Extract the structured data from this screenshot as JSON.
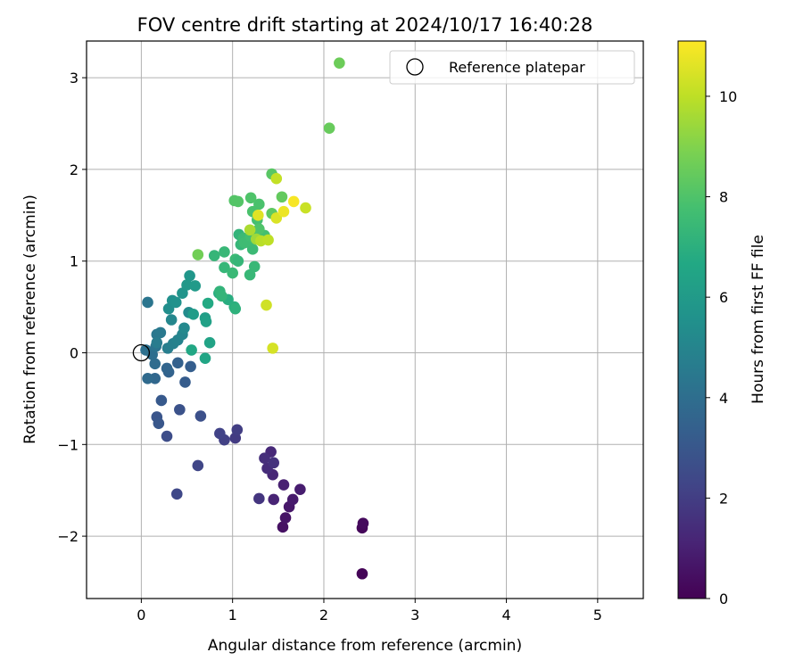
{
  "chart_data": {
    "type": "scatter",
    "title": "FOV centre drift starting at 2024/10/17 16:40:28",
    "xlabel": "Angular distance from reference (arcmin)",
    "ylabel": "Rotation from reference (arcmin)",
    "xlim": [
      -0.6,
      5.5
    ],
    "ylim": [
      -2.68,
      3.4
    ],
    "xticks": [
      0,
      1,
      2,
      3,
      4,
      5
    ],
    "xticklabels": [
      "0",
      "1",
      "2",
      "3",
      "4",
      "5"
    ],
    "yticks": [
      -2,
      -1,
      0,
      1,
      2,
      3
    ],
    "yticklabels": [
      "−2",
      "−1",
      "0",
      "1",
      "2",
      "3"
    ],
    "grid": true,
    "legend_position": "top-right",
    "colorbar": {
      "label": "Hours from first FF file",
      "colormap": "viridis",
      "range": [
        0,
        11.1
      ],
      "ticks": [
        0,
        2,
        4,
        6,
        8,
        10
      ],
      "ticklabels": [
        "0",
        "2",
        "4",
        "6",
        "8",
        "10"
      ]
    },
    "reference": {
      "label": "Reference platepar",
      "x": 0,
      "y": 0
    },
    "points": [
      [
        2.42,
        -2.41,
        0.1
      ],
      [
        2.42,
        -1.91,
        0.2
      ],
      [
        2.43,
        -1.86,
        0.3
      ],
      [
        1.55,
        -1.9,
        0.5
      ],
      [
        1.58,
        -1.8,
        0.6
      ],
      [
        1.62,
        -1.68,
        0.7
      ],
      [
        1.66,
        -1.6,
        0.8
      ],
      [
        1.74,
        -1.49,
        0.9
      ],
      [
        1.56,
        -1.44,
        1.0
      ],
      [
        1.45,
        -1.6,
        1.1
      ],
      [
        1.44,
        -1.33,
        1.2
      ],
      [
        1.42,
        -1.08,
        1.3
      ],
      [
        1.38,
        -1.26,
        1.4
      ],
      [
        1.35,
        -1.15,
        1.5
      ],
      [
        1.45,
        -1.2,
        1.6
      ],
      [
        1.29,
        -1.59,
        1.7
      ],
      [
        1.03,
        -0.93,
        1.9
      ],
      [
        1.05,
        -0.84,
        2.0
      ],
      [
        0.91,
        -0.95,
        2.1
      ],
      [
        0.86,
        -0.88,
        2.2
      ],
      [
        0.62,
        -1.23,
        2.3
      ],
      [
        0.39,
        -1.54,
        2.4
      ],
      [
        0.28,
        -0.91,
        2.6
      ],
      [
        0.65,
        -0.69,
        2.7
      ],
      [
        0.42,
        -0.62,
        2.8
      ],
      [
        0.17,
        -0.7,
        2.9
      ],
      [
        0.19,
        -0.77,
        3.0
      ],
      [
        0.22,
        -0.52,
        3.1
      ],
      [
        0.48,
        -0.32,
        3.2
      ],
      [
        0.54,
        -0.15,
        3.3
      ],
      [
        0.4,
        -0.11,
        3.4
      ],
      [
        0.3,
        -0.21,
        3.5
      ],
      [
        0.28,
        -0.17,
        3.6
      ],
      [
        0.15,
        -0.28,
        3.7
      ],
      [
        0.07,
        -0.28,
        3.8
      ],
      [
        0.15,
        -0.12,
        3.9
      ],
      [
        0.12,
        -0.02,
        4.0
      ],
      [
        0.05,
        0.03,
        4.1
      ],
      [
        0.16,
        0.07,
        4.2
      ],
      [
        0.07,
        0.55,
        4.3
      ],
      [
        0.17,
        0.2,
        4.4
      ],
      [
        0.21,
        0.22,
        4.5
      ],
      [
        0.17,
        0.11,
        4.6
      ],
      [
        0.29,
        0.05,
        4.7
      ],
      [
        0.35,
        0.1,
        4.8
      ],
      [
        0.4,
        0.14,
        4.9
      ],
      [
        0.45,
        0.2,
        5.0
      ],
      [
        0.33,
        0.36,
        5.1
      ],
      [
        0.47,
        0.27,
        5.2
      ],
      [
        0.52,
        0.44,
        5.3
      ],
      [
        0.3,
        0.48,
        5.4
      ],
      [
        0.34,
        0.57,
        5.5
      ],
      [
        0.38,
        0.55,
        5.6
      ],
      [
        0.45,
        0.65,
        5.7
      ],
      [
        0.53,
        0.84,
        5.8
      ],
      [
        0.5,
        0.74,
        5.9
      ],
      [
        0.59,
        0.73,
        6.0
      ],
      [
        0.57,
        0.42,
        6.1
      ],
      [
        0.7,
        0.38,
        6.2
      ],
      [
        0.71,
        0.34,
        6.3
      ],
      [
        0.75,
        0.11,
        6.4
      ],
      [
        0.7,
        -0.06,
        6.5
      ],
      [
        0.55,
        0.03,
        6.6
      ],
      [
        0.73,
        0.54,
        6.7
      ],
      [
        0.85,
        0.65,
        6.8
      ],
      [
        0.95,
        0.58,
        6.9
      ],
      [
        1.02,
        0.5,
        7.0
      ],
      [
        1.03,
        0.48,
        7.1
      ],
      [
        0.86,
        0.67,
        7.2
      ],
      [
        0.88,
        0.62,
        7.25
      ],
      [
        0.8,
        1.06,
        7.3
      ],
      [
        0.91,
        0.93,
        7.35
      ],
      [
        0.91,
        1.1,
        7.4
      ],
      [
        1.0,
        0.87,
        7.45
      ],
      [
        1.03,
        1.02,
        7.5
      ],
      [
        1.06,
        1.0,
        7.3
      ],
      [
        1.07,
        1.29,
        7.2
      ],
      [
        1.09,
        1.18,
        7.3
      ],
      [
        1.19,
        0.85,
        7.4
      ],
      [
        1.24,
        0.94,
        7.4
      ],
      [
        1.22,
        1.13,
        7.5
      ],
      [
        1.12,
        1.25,
        7.5
      ],
      [
        1.13,
        1.2,
        7.6
      ],
      [
        1.17,
        1.22,
        7.6
      ],
      [
        1.2,
        1.27,
        7.7
      ],
      [
        1.26,
        1.3,
        7.7
      ],
      [
        1.35,
        1.28,
        7.8
      ],
      [
        1.27,
        1.45,
        7.8
      ],
      [
        1.22,
        1.54,
        7.9
      ],
      [
        1.29,
        1.62,
        7.9
      ],
      [
        1.2,
        1.69,
        8.0
      ],
      [
        1.29,
        1.35,
        8.0
      ],
      [
        1.02,
        1.66,
        8.1
      ],
      [
        1.06,
        1.65,
        8.1
      ],
      [
        1.43,
        1.95,
        8.2
      ],
      [
        1.43,
        1.52,
        8.3
      ],
      [
        1.54,
        1.7,
        8.4
      ],
      [
        2.06,
        2.45,
        8.5
      ],
      [
        2.17,
        3.16,
        8.6
      ],
      [
        0.62,
        1.07,
        8.7
      ],
      [
        1.26,
        1.24,
        9.5
      ],
      [
        1.19,
        1.34,
        9.7
      ],
      [
        1.31,
        1.22,
        9.9
      ],
      [
        1.39,
        1.23,
        10.0
      ],
      [
        1.48,
        1.9,
        10.1
      ],
      [
        1.37,
        0.52,
        10.3
      ],
      [
        1.44,
        0.05,
        10.4
      ],
      [
        1.28,
        1.5,
        10.6
      ],
      [
        1.48,
        1.47,
        10.5
      ],
      [
        1.56,
        1.54,
        10.8
      ],
      [
        1.67,
        1.65,
        11.0
      ],
      [
        1.8,
        1.58,
        10.2
      ]
    ]
  }
}
